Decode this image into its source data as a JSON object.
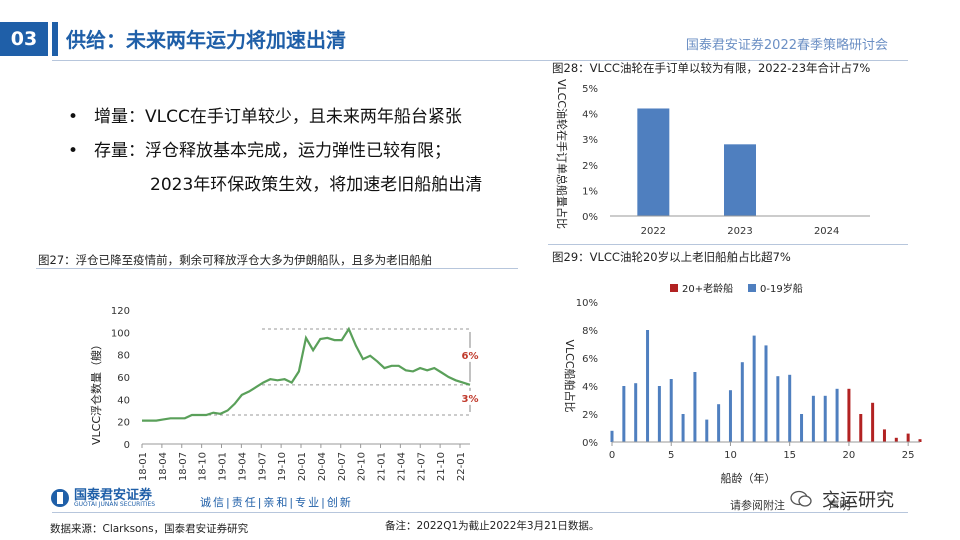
{
  "header": {
    "slide_number": "03",
    "title": "供给：未来两年运力将加速出清",
    "right_note": "国泰君安证券2022春季策略研讨会"
  },
  "bullets": [
    {
      "dot": "•",
      "text": "增量：VLCC在手订单较少，且未来两年船台紧张"
    },
    {
      "dot": "•",
      "text": "存量：浮仓释放基本完成，运力弹性已较有限；"
    },
    {
      "dot": "",
      "text": "2023年环保政策生效，将加速老旧船舶出清"
    }
  ],
  "chart_data": [
    {
      "id": "fig27",
      "type": "line",
      "title": "图27：浮仓已降至疫情前，剩余可释放浮仓大多为伊朗船队，且多为老旧船舶",
      "ylabel": "VLCC浮仓数量（艘）",
      "ylim": [
        0,
        120
      ],
      "yticks": [
        0,
        20,
        40,
        60,
        80,
        100,
        120
      ],
      "xtick_labels": [
        "18-01",
        "18-04",
        "18-07",
        "18-10",
        "19-01",
        "19-04",
        "19-07",
        "19-10",
        "20-01",
        "20-04",
        "20-07",
        "20-10",
        "21-01",
        "21-04",
        "21-07",
        "21-10",
        "22-01"
      ],
      "series": [
        {
          "name": "",
          "color": "#5aa05a",
          "values": [
            21,
            21,
            21,
            22,
            23,
            23,
            23,
            26,
            26,
            26,
            28,
            27,
            30,
            36,
            44,
            47,
            51,
            55,
            58,
            57,
            58,
            55,
            65,
            95,
            84,
            94,
            95,
            93,
            93,
            103,
            88,
            76,
            79,
            74,
            68,
            70,
            70,
            66,
            65,
            68,
            66,
            68,
            64,
            60,
            57,
            55,
            53
          ]
        }
      ],
      "annotations": [
        {
          "label": "6%",
          "color": "#c0392b"
        },
        {
          "label": "3%",
          "color": "#c0392b"
        }
      ],
      "reference_lines": [
        103,
        53,
        26
      ]
    },
    {
      "id": "fig28",
      "type": "bar",
      "title": "图28：VLCC油轮在手订单以较为有限，2022-23年合计占7%",
      "ylabel": "VLCC油轮在手订单总船量占比",
      "categories": [
        "2022",
        "2023",
        "2024"
      ],
      "values": [
        4.2,
        2.8,
        0
      ],
      "ylim": [
        0,
        5
      ],
      "yticks": [
        "0%",
        "1%",
        "2%",
        "3%",
        "4%",
        "5%"
      ],
      "color": "#4f7fbf"
    },
    {
      "id": "fig29",
      "type": "bar",
      "title": "图29：VLCC油轮20岁以上老旧船舶占比超7%",
      "ylabel": "VLCC船舶占比",
      "xlabel": "船龄（年）",
      "xlim": [
        0,
        26
      ],
      "xticks": [
        0,
        5,
        10,
        15,
        20,
        25
      ],
      "ylim": [
        0,
        10
      ],
      "yticks": [
        "0%",
        "2%",
        "4%",
        "6%",
        "8%",
        "10%"
      ],
      "series": [
        {
          "name": "20+老龄船",
          "color": "#b22222",
          "x": [
            20,
            21,
            22,
            23,
            24,
            25,
            26
          ],
          "values": [
            3.8,
            2.0,
            2.8,
            0.9,
            0.3,
            0.6,
            0.2
          ]
        },
        {
          "name": "0-19岁船",
          "color": "#4f7fbf",
          "x": [
            0,
            1,
            2,
            3,
            4,
            5,
            6,
            7,
            8,
            9,
            10,
            11,
            12,
            13,
            14,
            15,
            16,
            17,
            18,
            19
          ],
          "values": [
            0.8,
            4.0,
            4.2,
            8.0,
            4.0,
            4.5,
            2.0,
            5.0,
            1.6,
            2.7,
            3.7,
            5.7,
            7.6,
            6.9,
            4.7,
            4.8,
            2.0,
            3.3,
            3.3,
            3.8
          ]
        }
      ]
    }
  ],
  "footer": {
    "logo_cn": "国泰君安证券",
    "logo_en": "GUOTAI JUNAN SECURITIES",
    "slogan": "诚信|责任|亲和|专业|创新",
    "source": "数据来源：Clarksons，国泰君安证券研究",
    "footnote": "备注：2022Q1为截止2022年3月21日数据。",
    "disclaimer": "请参阅附注",
    "disclaimer2": "声明",
    "wechat": "交运研究"
  },
  "colors": {
    "brand_blue": "#1f5fa8",
    "line_green": "#5aa05a",
    "accent_red": "#c0392b"
  }
}
